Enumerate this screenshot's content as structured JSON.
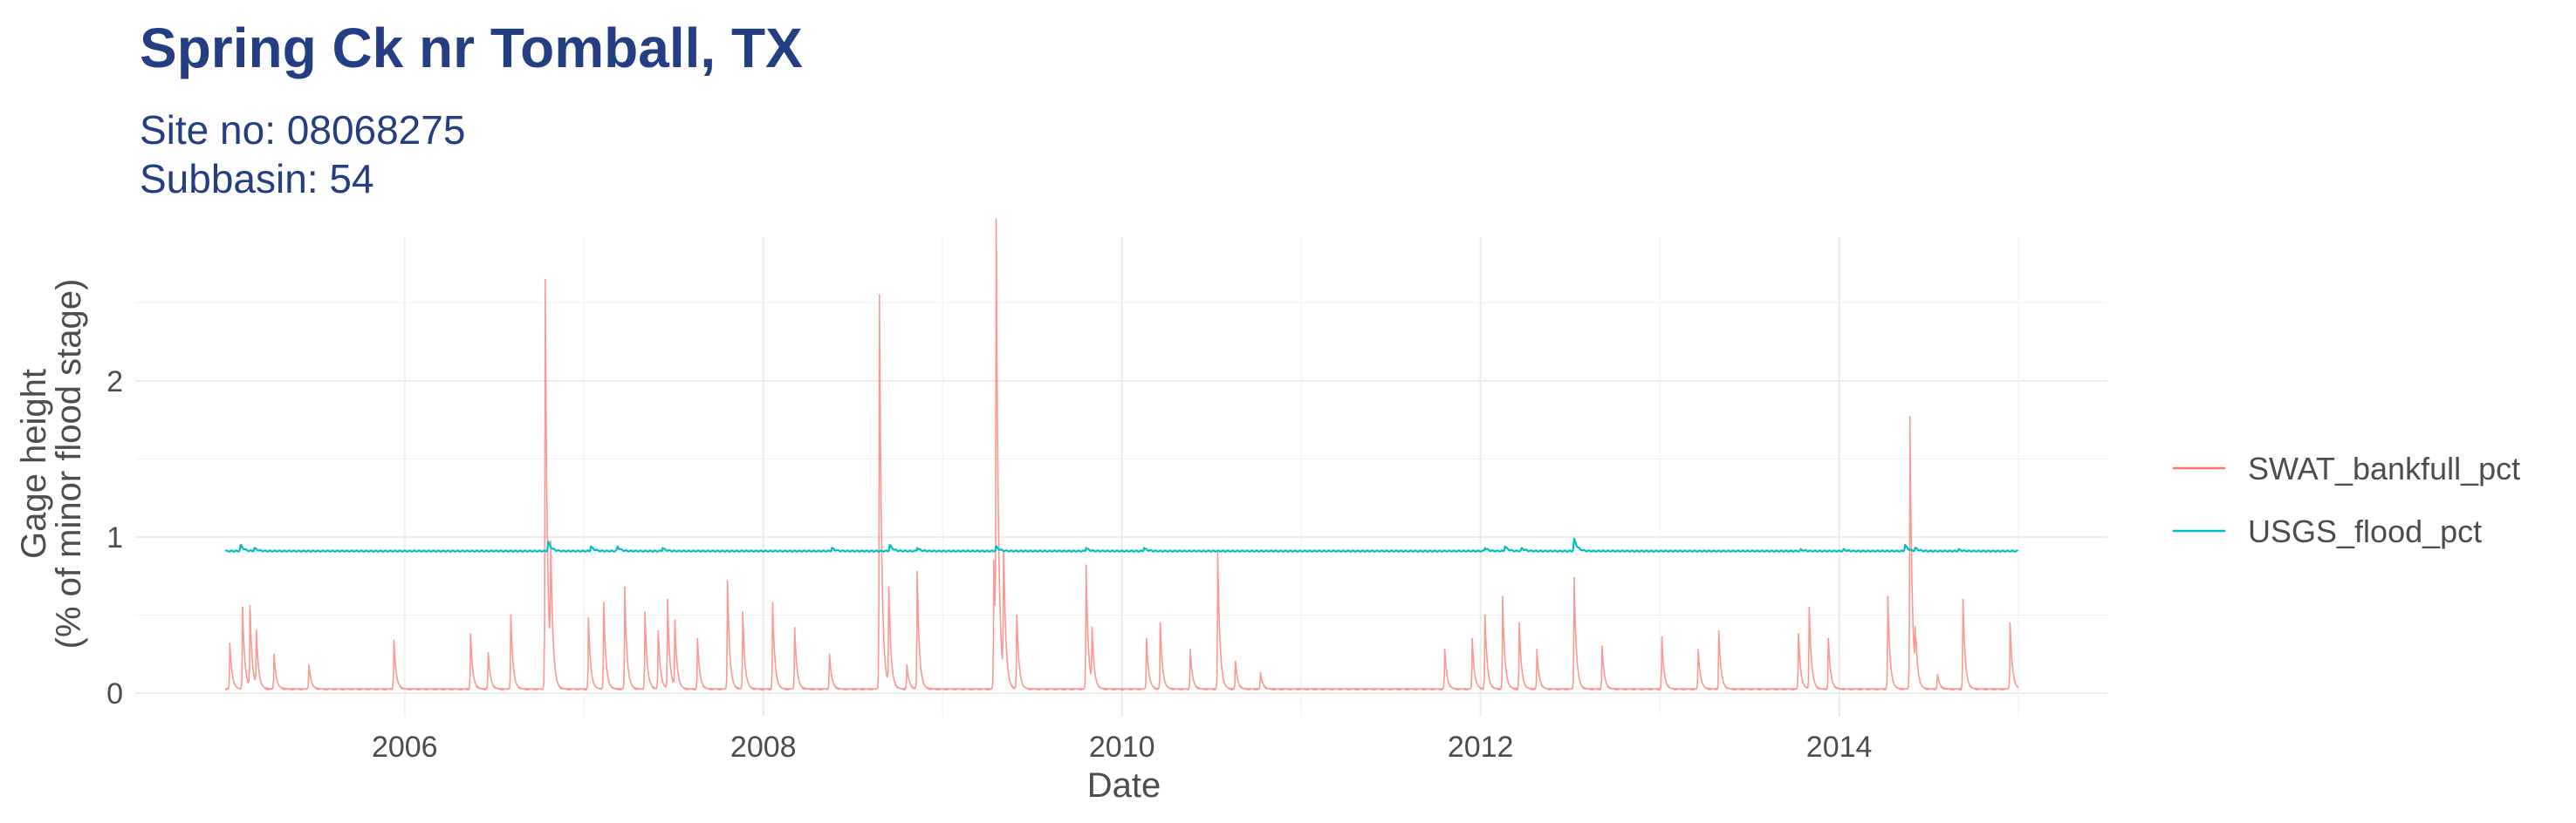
{
  "chart_data": {
    "type": "line",
    "title": "Spring Ck nr Tomball, TX",
    "subtitle_lines": [
      "Site no: 08068275",
      "Subbasin: 54"
    ],
    "xlabel": "Date",
    "ylabel_lines": [
      "Gage height",
      "(% of minor flood stage)"
    ],
    "x_ticks": [
      "2006",
      "2008",
      "2010",
      "2012",
      "2014"
    ],
    "y_ticks": [
      "0",
      "1",
      "2"
    ],
    "xlim": [
      "2004-07-01",
      "2015-07-01"
    ],
    "ylim": [
      -0.15,
      2.92
    ],
    "grid": true,
    "legend_position": "right",
    "series": [
      {
        "name": "SWAT_bankfull_pct",
        "color": "#f8766d",
        "baseline": 0.02,
        "x": [
          "2005-01-10",
          "2005-02-05",
          "2005-02-20",
          "2005-03-05",
          "2005-04-10",
          "2005-06-20",
          "2005-12-10",
          "2006-05-15",
          "2006-06-20",
          "2006-08-05",
          "2006-10-14",
          "2006-10-25",
          "2007-01-10",
          "2007-02-10",
          "2007-03-25",
          "2007-05-05",
          "2007-06-01",
          "2007-06-20",
          "2007-07-05",
          "2007-08-20",
          "2007-10-20",
          "2007-11-20",
          "2008-01-20",
          "2008-03-05",
          "2008-05-15",
          "2008-08-25",
          "2008-09-13",
          "2008-10-20",
          "2008-11-10",
          "2009-04-15",
          "2009-04-20",
          "2009-05-05",
          "2009-06-01",
          "2009-10-20",
          "2009-11-01",
          "2010-02-20",
          "2010-03-20",
          "2010-05-20",
          "2010-07-15",
          "2010-08-20",
          "2010-10-10",
          "2011-10-20",
          "2011-12-15",
          "2012-01-10",
          "2012-02-15",
          "2012-03-20",
          "2012-04-25",
          "2012-07-10",
          "2012-09-05",
          "2013-01-05",
          "2013-03-20",
          "2013-05-01",
          "2013-10-10",
          "2013-11-01",
          "2013-12-10",
          "2014-04-10",
          "2014-05-25",
          "2014-06-05",
          "2014-07-20",
          "2014-09-10",
          "2014-12-15"
        ],
        "y": [
          0.32,
          0.55,
          0.56,
          0.38,
          0.25,
          0.18,
          0.34,
          0.38,
          0.26,
          0.5,
          2.65,
          0.85,
          0.48,
          0.58,
          0.68,
          0.52,
          0.4,
          0.6,
          0.45,
          0.35,
          0.72,
          0.52,
          0.58,
          0.42,
          0.25,
          2.55,
          0.68,
          0.18,
          0.78,
          0.85,
          2.82,
          0.9,
          0.5,
          0.82,
          0.38,
          0.35,
          0.45,
          0.28,
          0.9,
          0.2,
          0.13,
          0.28,
          0.35,
          0.5,
          0.62,
          0.45,
          0.28,
          0.74,
          0.3,
          0.36,
          0.28,
          0.4,
          0.38,
          0.55,
          0.35,
          0.62,
          1.77,
          0.32,
          0.12,
          0.6,
          0.45
        ]
      },
      {
        "name": "USGS_flood_pct",
        "color": "#00bfc4",
        "baseline": 0.91,
        "x": [
          "2005-02-01",
          "2005-03-01",
          "2006-10-20",
          "2007-01-15",
          "2007-03-10",
          "2007-06-10",
          "2008-05-20",
          "2008-09-15",
          "2008-11-10",
          "2009-04-20",
          "2009-10-20",
          "2010-02-15",
          "2012-01-10",
          "2012-02-20",
          "2012-03-25",
          "2012-07-10",
          "2013-10-15",
          "2014-01-10",
          "2014-05-15",
          "2014-06-05",
          "2014-09-01"
        ],
        "y": [
          0.95,
          0.93,
          0.97,
          0.94,
          0.94,
          0.93,
          0.93,
          0.95,
          0.93,
          0.94,
          0.93,
          0.93,
          0.93,
          0.94,
          0.93,
          0.99,
          0.92,
          0.92,
          0.95,
          0.93,
          0.92
        ]
      }
    ]
  }
}
